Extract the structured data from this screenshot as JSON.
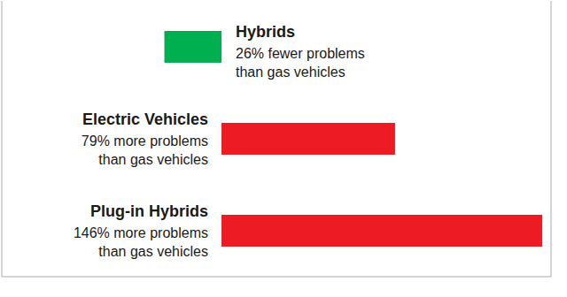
{
  "chart_data": {
    "type": "bar",
    "orientation": "horizontal",
    "categories": [
      "Hybrids",
      "Electric Vehicles",
      "Plug-in Hybrids"
    ],
    "values": [
      -26,
      79,
      146
    ],
    "value_labels": [
      "26% fewer problems\nthan gas vehicles",
      "79% more problems\nthan gas vehicles",
      "146% more problems\nthan gas vehicles"
    ],
    "data_labels": true,
    "colors": [
      "#00b050",
      "#ed1c24",
      "#ed1c24"
    ],
    "xlim": [
      -100,
      150
    ],
    "xticks": [
      0
    ],
    "grid": true,
    "tick_labels": false
  }
}
